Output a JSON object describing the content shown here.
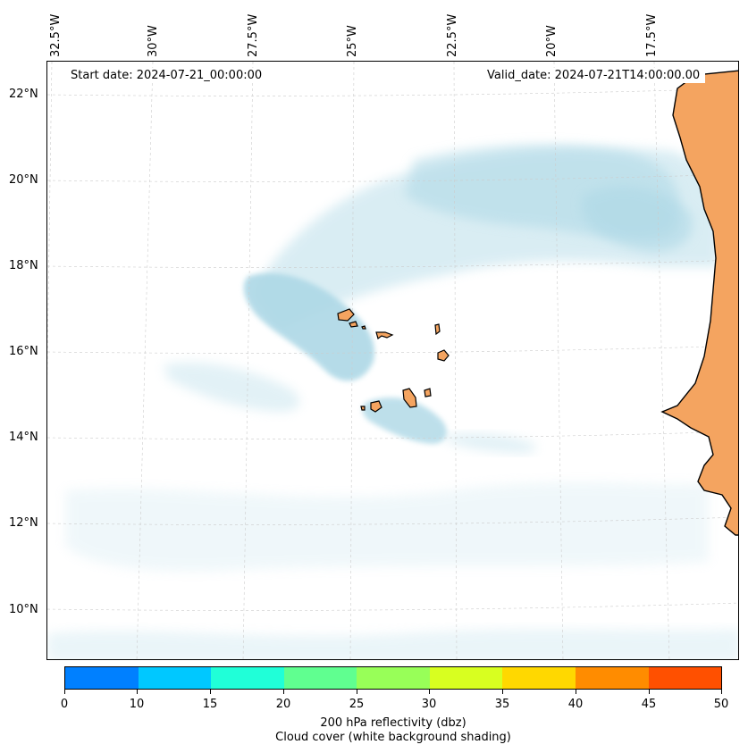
{
  "header": {
    "start_date": "Start date: 2024-07-21_00:00:00",
    "valid_date": "Valid_date: 2024-07-21T14:00:00.00"
  },
  "axes": {
    "lon_labels": [
      "32.5°W",
      "30°W",
      "27.5°W",
      "25°W",
      "22.5°W",
      "20°W",
      "17.5°W"
    ],
    "lat_labels": [
      "22°N",
      "20°N",
      "18°N",
      "16°N",
      "14°N",
      "12°N",
      "10°N"
    ]
  },
  "colorbar": {
    "ticks": [
      "0",
      "10",
      "15",
      "20",
      "25",
      "30",
      "35",
      "40",
      "45",
      "50"
    ],
    "colors": [
      "#0080ff",
      "#00c8ff",
      "#20ffd8",
      "#60ff90",
      "#98ff58",
      "#d8ff20",
      "#ffd800",
      "#ff8c00",
      "#ff5000"
    ],
    "label_line1": "200 hPa reflectivity (dbz)",
    "label_line2": "Cloud cover (white background shading)"
  },
  "map_colors": {
    "land": "#f4a460",
    "cloud": "#add8e6",
    "coast": "#000000",
    "grid": "#cccccc"
  }
}
